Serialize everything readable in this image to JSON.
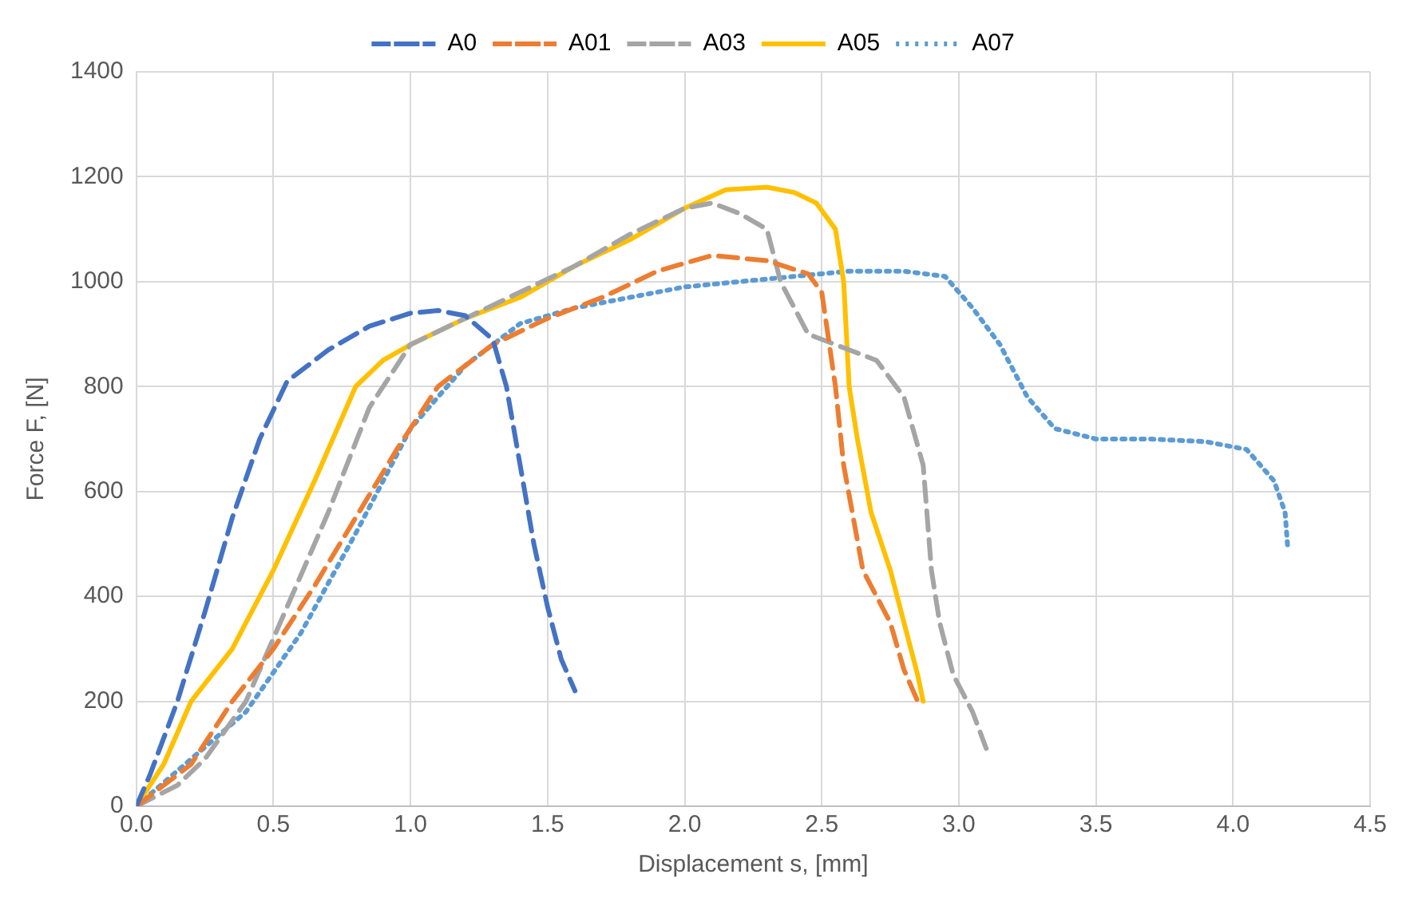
{
  "chart_data": {
    "type": "line",
    "xlabel": "Displacement s, [mm]",
    "ylabel": "Force F, [N]",
    "xlim": [
      0,
      4.5
    ],
    "xticks": [
      {
        "value": 0,
        "label": "0.0"
      },
      {
        "value": 0.5,
        "label": "0.5"
      },
      {
        "value": 1,
        "label": "1.0"
      },
      {
        "value": 1.5,
        "label": "1.5"
      },
      {
        "value": 2,
        "label": "2.0"
      },
      {
        "value": 2.5,
        "label": "2.5"
      },
      {
        "value": 3,
        "label": "3.0"
      },
      {
        "value": 3.5,
        "label": "3.5"
      },
      {
        "value": 4,
        "label": "4.0"
      },
      {
        "value": 4.5,
        "label": "4.5"
      }
    ],
    "ylim": [
      0,
      1400
    ],
    "yticks": [
      0,
      200,
      400,
      600,
      800,
      1000,
      1200,
      1400
    ],
    "grid": true,
    "legend": "top",
    "marker": "none",
    "series": [
      {
        "name": "A0",
        "color": "#4472c4",
        "line_style": "dashed",
        "x": [
          0,
          0.05,
          0.15,
          0.25,
          0.35,
          0.45,
          0.55,
          0.7,
          0.85,
          1.0,
          1.1,
          1.2,
          1.3,
          1.35,
          1.4,
          1.45,
          1.5,
          1.55,
          1.6
        ],
        "values": [
          0,
          60,
          200,
          370,
          550,
          700,
          810,
          870,
          915,
          940,
          945,
          935,
          890,
          800,
          650,
          500,
          380,
          280,
          220
        ]
      },
      {
        "name": "A01",
        "color": "#ed7d31",
        "line_style": "dashed",
        "x": [
          0,
          0.2,
          0.35,
          0.5,
          0.65,
          0.8,
          0.95,
          1.1,
          1.3,
          1.5,
          1.7,
          1.9,
          2.1,
          2.3,
          2.45,
          2.5,
          2.55,
          2.58,
          2.65,
          2.75,
          2.8,
          2.85
        ],
        "values": [
          0,
          80,
          200,
          300,
          420,
          550,
          680,
          800,
          880,
          930,
          970,
          1020,
          1050,
          1040,
          1015,
          980,
          800,
          650,
          450,
          350,
          260,
          200
        ]
      },
      {
        "name": "A03",
        "color": "#a5a5a5",
        "line_style": "dashed",
        "x": [
          0,
          0.15,
          0.25,
          0.4,
          0.55,
          0.7,
          0.85,
          1.0,
          1.2,
          1.4,
          1.6,
          1.8,
          2.0,
          2.1,
          2.2,
          2.3,
          2.35,
          2.45,
          2.6,
          2.7,
          2.8,
          2.87,
          2.9,
          2.93,
          2.98,
          3.05,
          3.1
        ],
        "values": [
          0,
          40,
          90,
          200,
          380,
          560,
          760,
          880,
          930,
          980,
          1030,
          1090,
          1140,
          1150,
          1130,
          1100,
          1000,
          900,
          870,
          850,
          780,
          650,
          450,
          350,
          250,
          180,
          110
        ]
      },
      {
        "name": "A05",
        "color": "#ffc000",
        "line_style": "solid",
        "x": [
          0,
          0.1,
          0.2,
          0.35,
          0.5,
          0.65,
          0.8,
          0.9,
          1.0,
          1.2,
          1.4,
          1.6,
          1.8,
          2.0,
          2.15,
          2.3,
          2.4,
          2.48,
          2.55,
          2.58,
          2.6,
          2.63,
          2.68,
          2.75,
          2.8,
          2.85,
          2.87
        ],
        "values": [
          0,
          80,
          200,
          300,
          450,
          620,
          800,
          850,
          880,
          930,
          970,
          1030,
          1080,
          1140,
          1175,
          1180,
          1170,
          1150,
          1100,
          1000,
          800,
          700,
          560,
          450,
          350,
          250,
          200
        ]
      },
      {
        "name": "A07",
        "color": "#5b9bd5",
        "line_style": "dotted",
        "x": [
          0,
          0.2,
          0.4,
          0.6,
          0.8,
          1.0,
          1.2,
          1.4,
          1.6,
          1.8,
          2.0,
          2.2,
          2.4,
          2.6,
          2.8,
          2.95,
          3.05,
          3.15,
          3.25,
          3.35,
          3.5,
          3.7,
          3.9,
          4.05,
          4.15,
          4.19,
          4.2
        ],
        "values": [
          0,
          90,
          180,
          330,
          520,
          720,
          840,
          920,
          950,
          970,
          990,
          1000,
          1010,
          1020,
          1020,
          1010,
          950,
          880,
          780,
          720,
          700,
          700,
          695,
          680,
          620,
          560,
          490
        ]
      }
    ]
  }
}
